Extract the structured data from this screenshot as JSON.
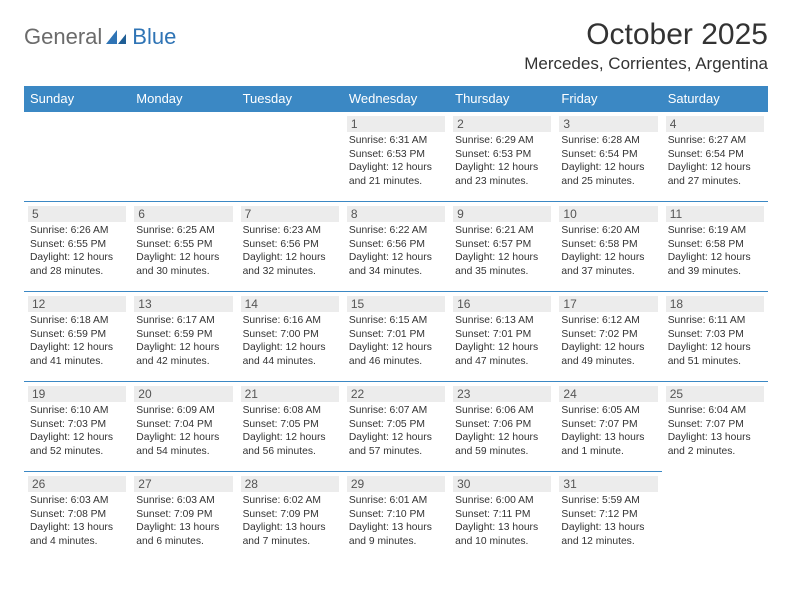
{
  "colors": {
    "header_bg": "#3b88c4",
    "header_text": "#ffffff",
    "row_border": "#3b88c4",
    "daynum_bg": "#ececec",
    "daynum_text": "#555555",
    "body_text": "#333333",
    "logo_gray": "#6b6b6b",
    "logo_blue": "#2f74b5"
  },
  "logo": {
    "part1": "General",
    "part2": "Blue"
  },
  "title": "October 2025",
  "location": "Mercedes, Corrientes, Argentina",
  "weekday_labels": [
    "Sunday",
    "Monday",
    "Tuesday",
    "Wednesday",
    "Thursday",
    "Friday",
    "Saturday"
  ],
  "weeks": [
    [
      null,
      null,
      null,
      {
        "n": "1",
        "sr": "6:31 AM",
        "ss": "6:53 PM",
        "dl": "12 hours and 21 minutes."
      },
      {
        "n": "2",
        "sr": "6:29 AM",
        "ss": "6:53 PM",
        "dl": "12 hours and 23 minutes."
      },
      {
        "n": "3",
        "sr": "6:28 AM",
        "ss": "6:54 PM",
        "dl": "12 hours and 25 minutes."
      },
      {
        "n": "4",
        "sr": "6:27 AM",
        "ss": "6:54 PM",
        "dl": "12 hours and 27 minutes."
      }
    ],
    [
      {
        "n": "5",
        "sr": "6:26 AM",
        "ss": "6:55 PM",
        "dl": "12 hours and 28 minutes."
      },
      {
        "n": "6",
        "sr": "6:25 AM",
        "ss": "6:55 PM",
        "dl": "12 hours and 30 minutes."
      },
      {
        "n": "7",
        "sr": "6:23 AM",
        "ss": "6:56 PM",
        "dl": "12 hours and 32 minutes."
      },
      {
        "n": "8",
        "sr": "6:22 AM",
        "ss": "6:56 PM",
        "dl": "12 hours and 34 minutes."
      },
      {
        "n": "9",
        "sr": "6:21 AM",
        "ss": "6:57 PM",
        "dl": "12 hours and 35 minutes."
      },
      {
        "n": "10",
        "sr": "6:20 AM",
        "ss": "6:58 PM",
        "dl": "12 hours and 37 minutes."
      },
      {
        "n": "11",
        "sr": "6:19 AM",
        "ss": "6:58 PM",
        "dl": "12 hours and 39 minutes."
      }
    ],
    [
      {
        "n": "12",
        "sr": "6:18 AM",
        "ss": "6:59 PM",
        "dl": "12 hours and 41 minutes."
      },
      {
        "n": "13",
        "sr": "6:17 AM",
        "ss": "6:59 PM",
        "dl": "12 hours and 42 minutes."
      },
      {
        "n": "14",
        "sr": "6:16 AM",
        "ss": "7:00 PM",
        "dl": "12 hours and 44 minutes."
      },
      {
        "n": "15",
        "sr": "6:15 AM",
        "ss": "7:01 PM",
        "dl": "12 hours and 46 minutes."
      },
      {
        "n": "16",
        "sr": "6:13 AM",
        "ss": "7:01 PM",
        "dl": "12 hours and 47 minutes."
      },
      {
        "n": "17",
        "sr": "6:12 AM",
        "ss": "7:02 PM",
        "dl": "12 hours and 49 minutes."
      },
      {
        "n": "18",
        "sr": "6:11 AM",
        "ss": "7:03 PM",
        "dl": "12 hours and 51 minutes."
      }
    ],
    [
      {
        "n": "19",
        "sr": "6:10 AM",
        "ss": "7:03 PM",
        "dl": "12 hours and 52 minutes."
      },
      {
        "n": "20",
        "sr": "6:09 AM",
        "ss": "7:04 PM",
        "dl": "12 hours and 54 minutes."
      },
      {
        "n": "21",
        "sr": "6:08 AM",
        "ss": "7:05 PM",
        "dl": "12 hours and 56 minutes."
      },
      {
        "n": "22",
        "sr": "6:07 AM",
        "ss": "7:05 PM",
        "dl": "12 hours and 57 minutes."
      },
      {
        "n": "23",
        "sr": "6:06 AM",
        "ss": "7:06 PM",
        "dl": "12 hours and 59 minutes."
      },
      {
        "n": "24",
        "sr": "6:05 AM",
        "ss": "7:07 PM",
        "dl": "13 hours and 1 minute."
      },
      {
        "n": "25",
        "sr": "6:04 AM",
        "ss": "7:07 PM",
        "dl": "13 hours and 2 minutes."
      }
    ],
    [
      {
        "n": "26",
        "sr": "6:03 AM",
        "ss": "7:08 PM",
        "dl": "13 hours and 4 minutes."
      },
      {
        "n": "27",
        "sr": "6:03 AM",
        "ss": "7:09 PM",
        "dl": "13 hours and 6 minutes."
      },
      {
        "n": "28",
        "sr": "6:02 AM",
        "ss": "7:09 PM",
        "dl": "13 hours and 7 minutes."
      },
      {
        "n": "29",
        "sr": "6:01 AM",
        "ss": "7:10 PM",
        "dl": "13 hours and 9 minutes."
      },
      {
        "n": "30",
        "sr": "6:00 AM",
        "ss": "7:11 PM",
        "dl": "13 hours and 10 minutes."
      },
      {
        "n": "31",
        "sr": "5:59 AM",
        "ss": "7:12 PM",
        "dl": "13 hours and 12 minutes."
      },
      null
    ]
  ],
  "labels": {
    "sunrise": "Sunrise:",
    "sunset": "Sunset:",
    "daylight": "Daylight:"
  }
}
